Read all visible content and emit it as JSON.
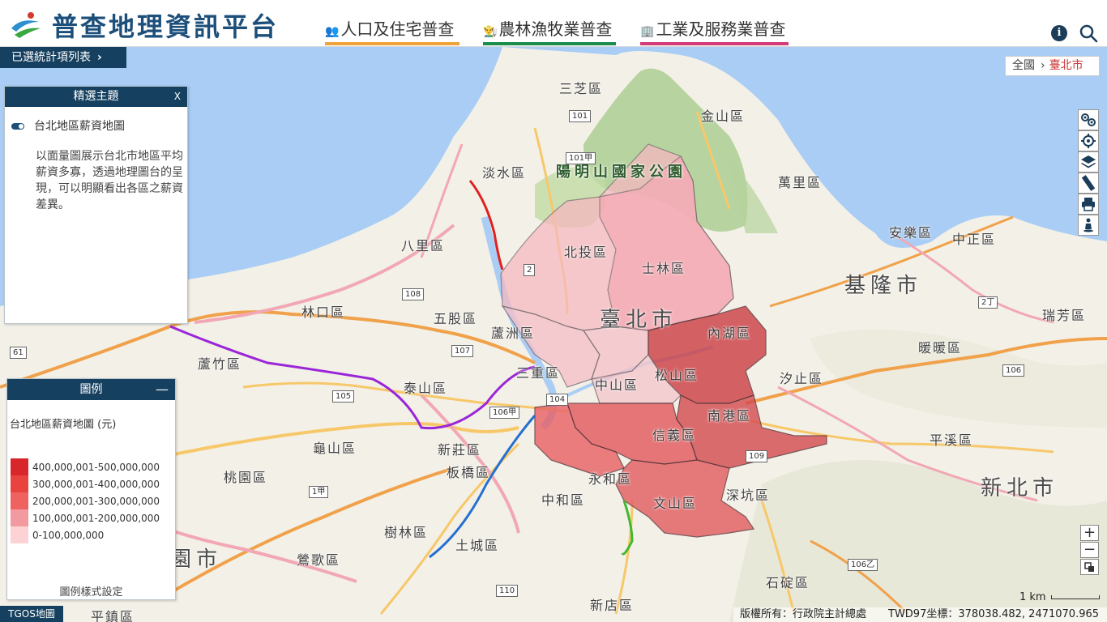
{
  "header": {
    "title": "普查地理資訊平台",
    "tabs": [
      {
        "label": "人口及住宅普查",
        "icon": "people-icon"
      },
      {
        "label": "農林漁牧業普查",
        "icon": "farmer-icon"
      },
      {
        "label": "工業及服務業普查",
        "icon": "building-icon"
      }
    ]
  },
  "selected_list": {
    "label": "已選統計項列表"
  },
  "breadcrumb": {
    "all": "全國",
    "current": "臺北市"
  },
  "theme_panel": {
    "title": "精選主題",
    "close_label": "X",
    "item_label": "台北地區薪資地圖",
    "description": "以面量圖展示台北市地區平均薪資多寡，透過地理圖台的呈現，可以明顯看出各區之薪資差異。"
  },
  "legend": {
    "title": "圖例",
    "collapse_label": "—",
    "map_title": "台北地區薪資地圖 (元)",
    "items": [
      {
        "label": "400,000,001-500,000,000",
        "color": "#d9262a"
      },
      {
        "label": "300,000,001-400,000,000",
        "color": "#e8433f"
      },
      {
        "label": "200,000,001-300,000,000",
        "color": "#ef6260"
      },
      {
        "label": "100,000,001-200,000,000",
        "color": "#f19aa0"
      },
      {
        "label": "0-100,000,000",
        "color": "#fdd2d5"
      }
    ],
    "style_settings": "圖例樣式設定"
  },
  "toolbar": [
    "route-icon",
    "locate-icon",
    "layers-icon",
    "ruler-icon",
    "print-icon",
    "street-view-icon"
  ],
  "zoom": {
    "in": "+",
    "out": "−"
  },
  "map_labels": [
    "三芝區",
    "金山區",
    "淡水區",
    "萬里區",
    "八里區",
    "北投區",
    "士林區",
    "安樂區",
    "中正區",
    "林口區",
    "五股區",
    "蘆洲區",
    "內湖區",
    "暖暖區",
    "瑞芳區",
    "蘆竹區",
    "泰山區",
    "三重區",
    "中山區",
    "松山區",
    "汐止區",
    "南港區",
    "龜山區",
    "新莊區",
    "信義區",
    "平溪區",
    "桃園區",
    "板橋區",
    "永和區",
    "文山區",
    "深坑區",
    "中和區",
    "樹林區",
    "土城區",
    "鶯歌區",
    "石碇區",
    "新店區",
    "平鎮區",
    "陽明山國家公園",
    "臺北市",
    "基隆市",
    "新北市",
    "桃園市"
  ],
  "road_shields": [
    "101",
    "101甲",
    "108",
    "107",
    "105",
    "106",
    "106甲",
    "104",
    "110",
    "109",
    "61",
    "2",
    "1甲",
    "2丁",
    "106乙"
  ],
  "map_source": "TGOS地圖",
  "scale": "1 km",
  "footer": {
    "copyright": "版權所有：行政院主計總處",
    "coords": "TWD97坐標：378038.482, 2471070.965"
  }
}
